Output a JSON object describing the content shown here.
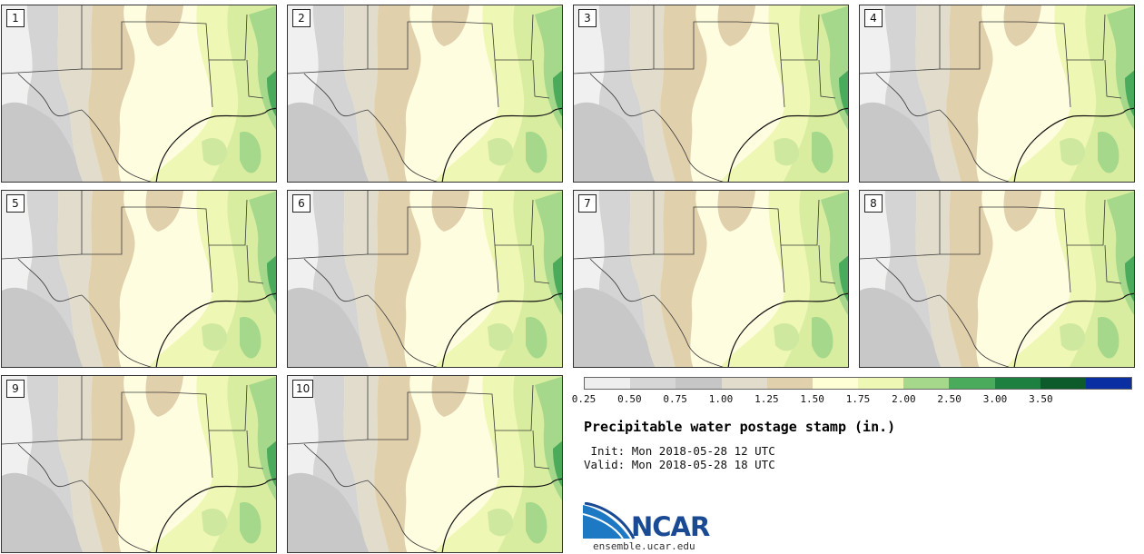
{
  "panels": [
    {
      "label": "1"
    },
    {
      "label": "2"
    },
    {
      "label": "3"
    },
    {
      "label": "4"
    },
    {
      "label": "5"
    },
    {
      "label": "6"
    },
    {
      "label": "7"
    },
    {
      "label": "8"
    },
    {
      "label": "9"
    },
    {
      "label": "10"
    }
  ],
  "colorbar": {
    "ticks": [
      "0.25",
      "0.50",
      "0.75",
      "1.00",
      "1.25",
      "1.50",
      "1.75",
      "2.00",
      "2.50",
      "3.00",
      "3.50"
    ],
    "colors": [
      "#eeeeee",
      "#d6d6d6",
      "#c6c6c6",
      "#e2dccc",
      "#e1d0ac",
      "#ffffd6",
      "#eef7b4",
      "#a5d88a",
      "#4aab5c",
      "#1d8040",
      "#0d5b2b",
      "#0a2fa3"
    ]
  },
  "title": "Precipitable water postage stamp (in.)",
  "init": {
    "label": " Init:",
    "value": "Mon 2018-05-28 12 UTC"
  },
  "valid": {
    "label": "Valid:",
    "value": "Mon 2018-05-28 18 UTC"
  },
  "logo": {
    "text": "NCAR",
    "site": "ensemble.ucar.edu"
  }
}
